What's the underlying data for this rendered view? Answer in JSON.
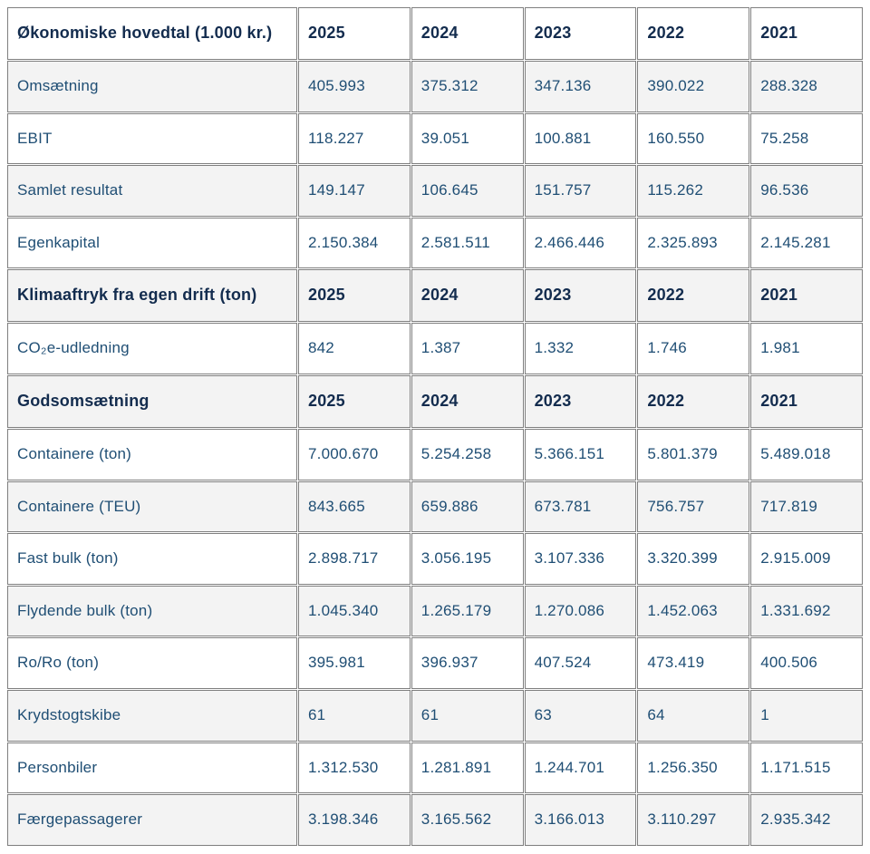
{
  "style": {
    "body_text_color": "#1f4e74",
    "header_text_color": "#132c4e",
    "stripe_color": "#f3f3f3",
    "border_color": "#7f7f7f",
    "page_background": "#ffffff"
  },
  "chart_data": {
    "type": "table",
    "title": "Økonomiske hovedtal (1.000 kr.)",
    "years": [
      "2025",
      "2024",
      "2023",
      "2022",
      "2021"
    ],
    "sections": [
      {
        "title": "Økonomiske hovedtal (1.000 kr.)",
        "rows": [
          {
            "label": "Omsætning",
            "values": [
              "405.993",
              "375.312",
              "347.136",
              "390.022",
              "288.328"
            ]
          },
          {
            "label": "EBIT",
            "values": [
              "118.227",
              "39.051",
              "100.881",
              "160.550",
              "75.258"
            ]
          },
          {
            "label": "Samlet resultat",
            "values": [
              "149.147",
              "106.645",
              "151.757",
              "115.262",
              "96.536"
            ]
          },
          {
            "label": "Egenkapital",
            "values": [
              "2.150.384",
              "2.581.511",
              "2.466.446",
              "2.325.893",
              "2.145.281"
            ]
          }
        ]
      },
      {
        "title": "Klimaaftryk fra egen drift (ton)",
        "rows": [
          {
            "label": "CO₂e-udledning",
            "values": [
              "842",
              "1.387",
              "1.332",
              "1.746",
              "1.981"
            ]
          }
        ]
      },
      {
        "title": "Godsomsætning",
        "rows": [
          {
            "label": "Containere (ton)",
            "values": [
              "7.000.670",
              "5.254.258",
              "5.366.151",
              "5.801.379",
              "5.489.018"
            ]
          },
          {
            "label": "Containere (TEU)",
            "values": [
              "843.665",
              "659.886",
              "673.781",
              "756.757",
              "717.819"
            ]
          },
          {
            "label": "Fast bulk (ton)",
            "values": [
              "2.898.717",
              "3.056.195",
              "3.107.336",
              "3.320.399",
              "2.915.009"
            ]
          },
          {
            "label": "Flydende bulk (ton)",
            "values": [
              "1.045.340",
              "1.265.179",
              "1.270.086",
              "1.452.063",
              "1.331.692"
            ]
          },
          {
            "label": "Ro/Ro (ton)",
            "values": [
              "395.981",
              "396.937",
              "407.524",
              "473.419",
              "400.506"
            ]
          },
          {
            "label": "Krydstogtskibe",
            "values": [
              "61",
              "61",
              "63",
              "64",
              "1"
            ]
          },
          {
            "label": "Personbiler",
            "values": [
              "1.312.530",
              "1.281.891",
              "1.244.701",
              "1.256.350",
              "1.171.515"
            ]
          },
          {
            "label": "Færgepassagerer",
            "values": [
              "3.198.346",
              "3.165.562",
              "3.166.013",
              "3.110.297",
              "2.935.342"
            ]
          }
        ]
      }
    ]
  }
}
